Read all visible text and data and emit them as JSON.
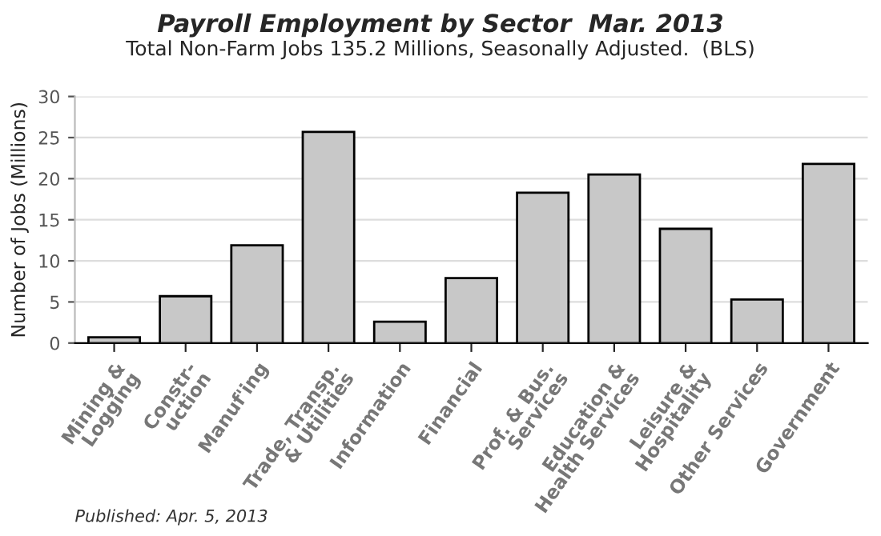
{
  "chart_data": {
    "type": "bar",
    "title": "Payroll Employment by Sector  Mar. 2013",
    "subtitle": "Total Non-Farm Jobs 135.2 Millions, Seasonally Adjusted.  (BLS)",
    "ylabel": "Number of Jobs (Millions)",
    "categories": [
      "Mining &\nLogging",
      "Constr-\nuction",
      "Manuf'ing",
      "Trade, Transp.\n& Utilities",
      "Information",
      "Financial",
      "Prof. & Bus.\nServices",
      "Education &\nHealth Services",
      "Leisure &\nHospitality",
      "Other Services",
      "Government"
    ],
    "values": [
      0.7,
      5.7,
      11.9,
      25.7,
      2.6,
      7.9,
      18.3,
      20.5,
      13.9,
      5.3,
      21.8
    ],
    "color": "#c8c8c8",
    "ylim": [
      0,
      30
    ],
    "yticks": [
      0,
      5,
      10,
      15,
      20,
      25,
      30
    ],
    "grid": "y",
    "annotations": [
      "Published: Apr. 5, 2013"
    ]
  }
}
